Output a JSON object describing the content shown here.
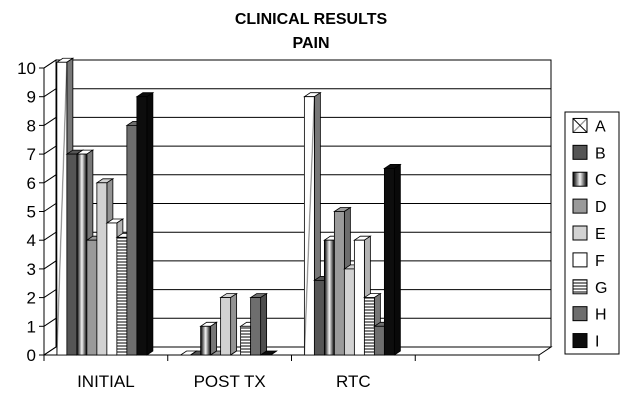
{
  "chart_data": {
    "type": "bar",
    "title": "CLINICAL RESULTS",
    "subtitle": "PAIN",
    "categories": [
      "INITIAL",
      "POST TX",
      "RTC"
    ],
    "ylim": [
      0,
      10
    ],
    "yticks": [
      0,
      1,
      2,
      3,
      4,
      5,
      6,
      7,
      8,
      9,
      10
    ],
    "grid": true,
    "legend_position": "right",
    "series": [
      {
        "name": "A",
        "values": [
          10.2,
          0.0,
          9.0
        ],
        "fill": "stripe",
        "color": "#ffffff"
      },
      {
        "name": "B",
        "values": [
          7.0,
          0.0,
          2.6
        ],
        "fill": "solid",
        "color": "#555555"
      },
      {
        "name": "C",
        "values": [
          7.0,
          1.0,
          4.0
        ],
        "fill": "cylinder",
        "color": "#111111"
      },
      {
        "name": "D",
        "values": [
          4.0,
          0.0,
          5.0
        ],
        "fill": "solid",
        "color": "#9a9a9a"
      },
      {
        "name": "E",
        "values": [
          6.0,
          2.0,
          3.0
        ],
        "fill": "solid",
        "color": "#d2d2d2"
      },
      {
        "name": "F",
        "values": [
          4.6,
          0.0,
          4.0
        ],
        "fill": "solid",
        "color": "#ffffff"
      },
      {
        "name": "G",
        "values": [
          4.1,
          1.0,
          2.0
        ],
        "fill": "hlines",
        "color": "#ffffff"
      },
      {
        "name": "H",
        "values": [
          8.0,
          2.0,
          1.0
        ],
        "fill": "solid",
        "color": "#6e6e6e"
      },
      {
        "name": "I",
        "values": [
          9.0,
          0.0,
          6.5
        ],
        "fill": "solid",
        "color": "#0d0d0d"
      }
    ]
  }
}
